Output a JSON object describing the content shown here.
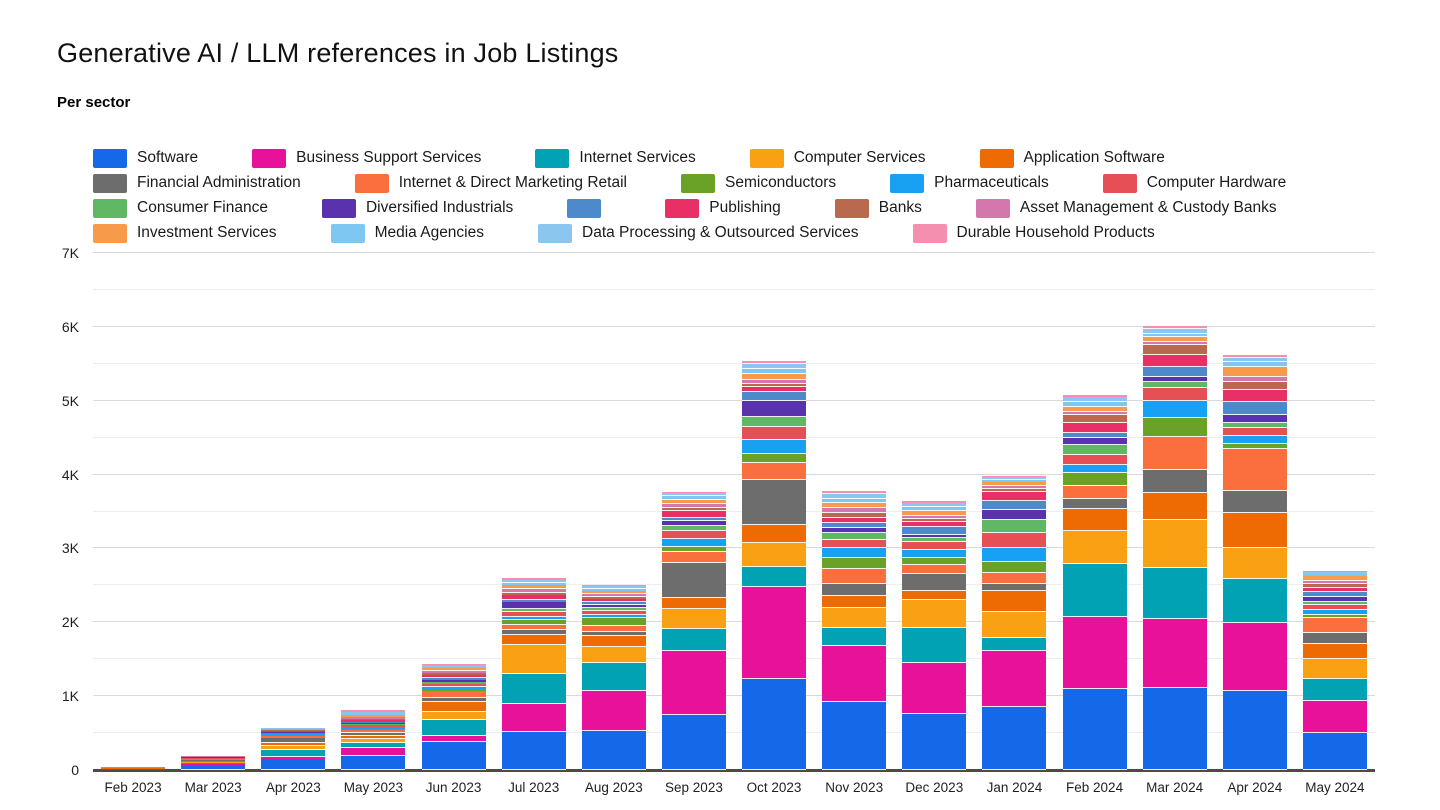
{
  "header": {
    "title": "Generative AI / LLM references in Job Listings",
    "subtitle": "Per sector"
  },
  "chart_data": {
    "type": "bar",
    "stacked": true,
    "title": "Generative AI / LLM references in Job Listings",
    "subtitle": "Per sector",
    "xlabel": "",
    "ylabel": "",
    "ylim": [
      0,
      7000
    ],
    "grid": true,
    "minor_grid_step": 500,
    "legend_position": "top",
    "yticks": [
      {
        "value": 0,
        "label": "0"
      },
      {
        "value": 1000,
        "label": "1K"
      },
      {
        "value": 2000,
        "label": "2K"
      },
      {
        "value": 3000,
        "label": "3K"
      },
      {
        "value": 4000,
        "label": "4K"
      },
      {
        "value": 5000,
        "label": "5K"
      },
      {
        "value": 6000,
        "label": "6K"
      },
      {
        "value": 7000,
        "label": "7K"
      }
    ],
    "categories": [
      "Feb 2023",
      "Mar 2023",
      "Apr 2023",
      "May 2023",
      "Jun 2023",
      "Jul 2023",
      "Aug 2023",
      "Sep 2023",
      "Oct 2023",
      "Nov 2023",
      "Dec 2023",
      "Jan 2024",
      "Feb 2024",
      "Mar 2024",
      "Apr 2024",
      "May 2024"
    ],
    "legend_rows": [
      [
        0,
        1,
        2,
        3,
        4
      ],
      [
        5,
        6,
        7,
        8,
        9
      ],
      [
        10,
        11,
        12,
        13,
        14,
        15
      ],
      [
        16,
        17,
        18,
        19
      ]
    ],
    "series": [
      {
        "name": "Software",
        "color": "#1568e8",
        "values": [
          8,
          55,
          145,
          190,
          385,
          510,
          530,
          745,
          1230,
          915,
          755,
          855,
          1090,
          1110,
          1070,
          505
        ]
      },
      {
        "name": "Business Support Services",
        "color": "#e8119a",
        "values": [
          5,
          30,
          35,
          105,
          75,
          390,
          540,
          860,
          1250,
          765,
          700,
          755,
          975,
          940,
          925,
          430
        ]
      },
      {
        "name": "Internet Services",
        "color": "#00a2b3",
        "values": [
          3,
          15,
          90,
          70,
          215,
          405,
          385,
          310,
          270,
          240,
          465,
          175,
          720,
          680,
          585,
          295
        ]
      },
      {
        "name": "Computer Services",
        "color": "#f9a013",
        "values": [
          3,
          15,
          60,
          60,
          110,
          385,
          205,
          260,
          330,
          270,
          380,
          350,
          450,
          655,
          430,
          270
        ]
      },
      {
        "name": "Application Software",
        "color": "#ee6b04",
        "values": [
          2,
          10,
          35,
          35,
          140,
          135,
          160,
          160,
          235,
          160,
          125,
          295,
          295,
          365,
          475,
          200
        ]
      },
      {
        "name": "Financial Administration",
        "color": "#6d6d6d",
        "values": [
          2,
          10,
          70,
          40,
          45,
          75,
          50,
          470,
          610,
          175,
          230,
          90,
          135,
          315,
          295,
          160
        ]
      },
      {
        "name": "Internet & Direct Marketing Retail",
        "color": "#fb6e3e",
        "values": [
          2,
          10,
          25,
          40,
          95,
          70,
          80,
          150,
          225,
          195,
          125,
          145,
          180,
          450,
          565,
          200
        ]
      },
      {
        "name": "Semiconductors",
        "color": "#6aa127",
        "values": [
          1,
          5,
          10,
          15,
          25,
          60,
          110,
          65,
          135,
          150,
          90,
          150,
          180,
          250,
          65,
          40
        ]
      },
      {
        "name": "Pharmaceuticals",
        "color": "#18a0f3",
        "values": [
          1,
          5,
          15,
          25,
          40,
          45,
          45,
          110,
          180,
          130,
          110,
          195,
          110,
          225,
          110,
          65
        ]
      },
      {
        "name": "Computer Hardware",
        "color": "#e74f56",
        "values": [
          1,
          10,
          15,
          25,
          40,
          60,
          50,
          110,
          180,
          120,
          110,
          200,
          135,
          180,
          110,
          65
        ]
      },
      {
        "name": "Consumer Finance",
        "color": "#60b764",
        "values": [
          1,
          3,
          5,
          15,
          20,
          45,
          45,
          65,
          135,
          90,
          45,
          170,
          135,
          90,
          65,
          45
        ]
      },
      {
        "name": "Diversified Industrials",
        "color": "#5a32ad",
        "values": [
          1,
          3,
          10,
          20,
          35,
          90,
          40,
          65,
          215,
          70,
          45,
          135,
          90,
          65,
          110,
          65
        ]
      },
      {
        "name": "",
        "color": "#4d8acc",
        "values": [
          1,
          3,
          5,
          15,
          25,
          35,
          30,
          45,
          125,
          65,
          110,
          125,
          65,
          135,
          180,
          65
        ]
      },
      {
        "name": "Publishing",
        "color": "#e93066",
        "values": [
          1,
          3,
          10,
          25,
          40,
          60,
          50,
          90,
          65,
          70,
          65,
          120,
          135,
          160,
          160,
          65
        ]
      },
      {
        "name": "Banks",
        "color": "#b8694e",
        "values": [
          1,
          3,
          5,
          15,
          20,
          35,
          25,
          45,
          45,
          65,
          45,
          45,
          110,
          135,
          110,
          45
        ]
      },
      {
        "name": "Asset Management & Custody Banks",
        "color": "#d477ad",
        "values": [
          1,
          3,
          10,
          25,
          35,
          45,
          35,
          45,
          45,
          65,
          45,
          45,
          45,
          45,
          65,
          45
        ]
      },
      {
        "name": "Investment Services",
        "color": "#f79b4b",
        "values": [
          1,
          3,
          10,
          30,
          35,
          60,
          50,
          65,
          90,
          65,
          65,
          45,
          65,
          65,
          135,
          65
        ]
      },
      {
        "name": "Media Agencies",
        "color": "#7dc7f2",
        "values": [
          1,
          2,
          5,
          20,
          20,
          30,
          25,
          45,
          65,
          65,
          45,
          30,
          65,
          45,
          65,
          25
        ]
      },
      {
        "name": "Data Processing & Outsourced Services",
        "color": "#8ac6ef",
        "values": [
          1,
          2,
          5,
          20,
          25,
          40,
          35,
          45,
          65,
          65,
          65,
          40,
          65,
          65,
          65,
          25
        ]
      },
      {
        "name": "Durable Household Products",
        "color": "#f48fb0",
        "values": [
          1,
          2,
          5,
          25,
          15,
          25,
          20,
          20,
          40,
          35,
          20,
          20,
          35,
          40,
          40,
          15
        ]
      }
    ]
  }
}
